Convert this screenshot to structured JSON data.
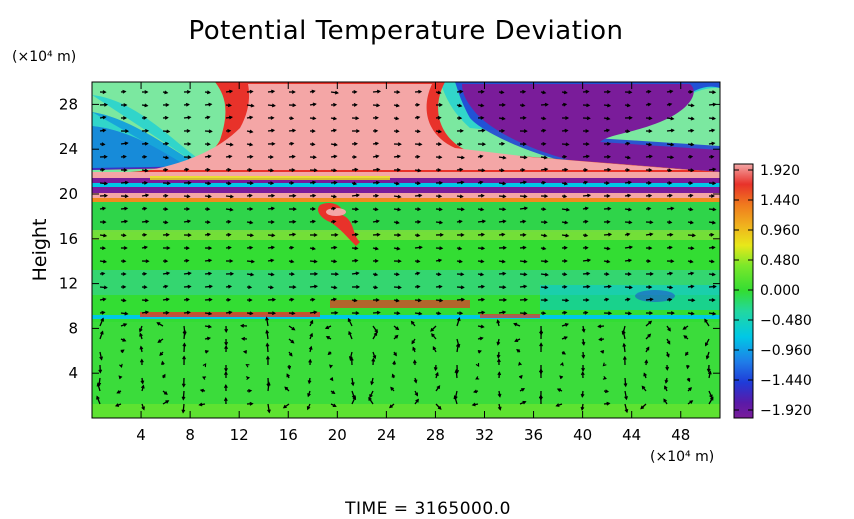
{
  "chart_data": {
    "type": "heatmap",
    "title": "Potential Temperature Deviation",
    "ylabel": "Height",
    "x_unit": "(×10⁴ m)",
    "y_unit": "(×10⁴ m)",
    "x_ticks": [
      "4",
      "8",
      "12",
      "16",
      "20",
      "24",
      "28",
      "32",
      "36",
      "40",
      "44",
      "48"
    ],
    "x_tick_values": [
      4,
      8,
      12,
      16,
      20,
      24,
      28,
      32,
      36,
      40,
      44,
      48
    ],
    "y_ticks": [
      "4",
      "8",
      "12",
      "16",
      "20",
      "24",
      "28"
    ],
    "y_tick_values": [
      4,
      8,
      12,
      16,
      20,
      24,
      28
    ],
    "xlim": [
      0,
      51.2
    ],
    "ylim": [
      0,
      30
    ],
    "colorbar": {
      "labels": [
        "1.920",
        "1.440",
        "0.960",
        "0.480",
        "0.000",
        "−0.480",
        "−0.960",
        "−1.440",
        "−1.920"
      ],
      "values": [
        1.92,
        1.44,
        0.96,
        0.48,
        0.0,
        -0.48,
        -0.96,
        -1.44,
        -1.92
      ],
      "range": [
        -1.92,
        1.92
      ]
    },
    "colors": {
      "pink": "#f4a6a6",
      "red": "#e8322a",
      "orange": "#f08a1e",
      "yellow": "#e8e81a",
      "green": "#33dd33",
      "cyan": "#00c8e6",
      "blue": "#1f3bd8",
      "purple": "#7a1c9a"
    },
    "time_label": "TIME = 3165000.0",
    "vectors": "yes",
    "grid": false
  }
}
